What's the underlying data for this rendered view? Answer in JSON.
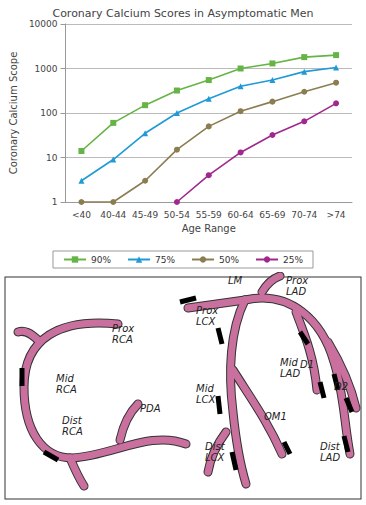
{
  "chart_data": {
    "type": "line",
    "title": "Coronary Calcium Scores in Asymptomatic Men",
    "x_label": "Age Range",
    "y_label": "Coronary Calcium Scope",
    "categories": [
      "<40",
      "40-44",
      "45-49",
      "50-54",
      "55-59",
      "60-64",
      "65-69",
      "70-74",
      ">74"
    ],
    "series": [
      {
        "name": "90%",
        "color": "#66b445",
        "marker": "square",
        "values": [
          14,
          60,
          150,
          320,
          550,
          1000,
          1300,
          1800,
          2000
        ]
      },
      {
        "name": "75%",
        "color": "#1f9ad6",
        "marker": "triangle",
        "values": [
          3,
          9,
          35,
          100,
          210,
          400,
          550,
          850,
          1050
        ]
      },
      {
        "name": "50%",
        "color": "#8c7d50",
        "marker": "circle",
        "values": [
          1,
          1,
          3,
          15,
          50,
          110,
          180,
          300,
          480
        ]
      },
      {
        "name": "25%",
        "color": "#a0288c",
        "marker": "circle",
        "values": [
          null,
          null,
          null,
          1,
          4,
          13,
          32,
          65,
          165
        ]
      }
    ],
    "ylim": [
      1,
      10000
    ],
    "yticks": [
      1,
      10,
      100,
      1000,
      10000
    ],
    "log": "y",
    "grid": true,
    "legend": "bottom"
  },
  "diagram": {
    "labels": [
      "Prox RCA",
      "Mid RCA",
      "Dist RCA",
      "PDA",
      "LM",
      "Prox LAD",
      "Prox LCX",
      "Mid LAD",
      "D1",
      "D2",
      "Mid LCX",
      "OM1",
      "Dist LAD",
      "Dist LCX"
    ]
  }
}
